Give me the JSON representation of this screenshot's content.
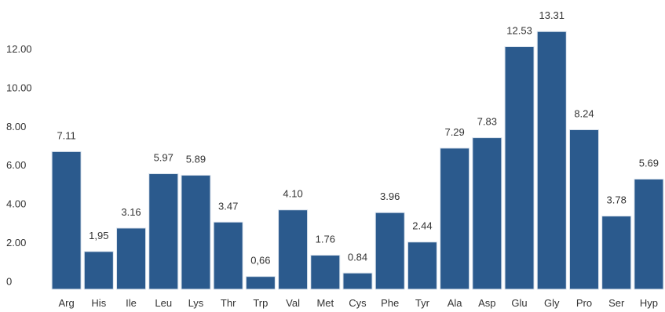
{
  "chart_data": {
    "type": "bar",
    "title": "",
    "xlabel": "",
    "ylabel": "",
    "categories": [
      "Arg",
      "His",
      "Ile",
      "Leu",
      "Lys",
      "Thr",
      "Trp",
      "Val",
      "Met",
      "Cys",
      "Phe",
      "Tyr",
      "Ala",
      "Asp",
      "Glu",
      "Gly",
      "Pro",
      "Ser",
      "Hyp"
    ],
    "values": [
      7.11,
      1.95,
      3.16,
      5.97,
      5.89,
      3.47,
      0.66,
      4.1,
      1.76,
      0.84,
      3.96,
      2.44,
      7.29,
      7.83,
      12.53,
      13.31,
      8.24,
      3.78,
      5.69
    ],
    "value_labels": [
      "7.11",
      "1,95",
      "3.16",
      "5.97",
      "5.89",
      "3.47",
      "0,66",
      "4.10",
      "1.76",
      "0.84",
      "3.96",
      "2.44",
      "7.29",
      "7.83",
      "12.53",
      "13.31",
      "8.24",
      "3.78",
      "5.69"
    ],
    "yticks": [
      0,
      2,
      4,
      6,
      8,
      10,
      12
    ],
    "ytick_labels": [
      "0",
      "2.00",
      "4.00",
      "6.00",
      "8.00",
      "10.00",
      "12.00"
    ],
    "ylim": [
      0,
      13.5
    ],
    "grid": false,
    "legend": "none",
    "bar_color": "#2b5a8d",
    "bar_edge_color": "#dbe4ee"
  }
}
